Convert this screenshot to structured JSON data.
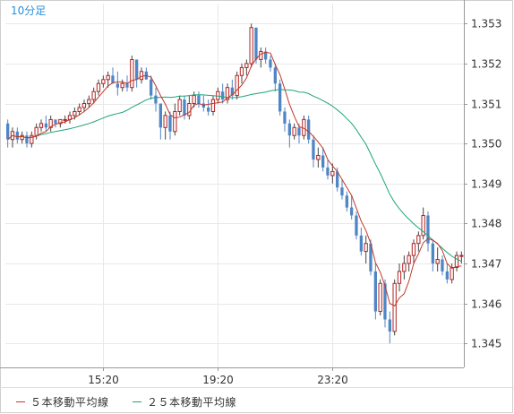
{
  "chart_data": {
    "type": "candlestick",
    "interval_label": "10分足",
    "x_tick_labels": [
      "15:20",
      "19:20",
      "23:20"
    ],
    "y_ticks": [
      1.345,
      1.346,
      1.347,
      1.348,
      1.349,
      1.35,
      1.351,
      1.352,
      1.353
    ],
    "y_tick_labels": [
      "1.345",
      "1.346",
      "1.347",
      "1.348",
      "1.349",
      "1.350",
      "1.351",
      "1.352",
      "1.353"
    ],
    "ylim": [
      1.3444,
      1.3535
    ],
    "grid": true,
    "colors": {
      "up": "#b22222",
      "down": "#4f86c6",
      "ma5": "#c0392b",
      "ma25": "#1fa37a",
      "interval_label": "#2a8fd6",
      "grid": "#e8e8e8",
      "axis": "#999999"
    },
    "legend": [
      {
        "name": "５本移動平均線",
        "color": "#c0392b"
      },
      {
        "name": "２５本移動平均線",
        "color": "#1fa37a"
      }
    ],
    "candles": [
      [
        1.3505,
        1.3506,
        1.3499,
        1.3501
      ],
      [
        1.3501,
        1.3504,
        1.3499,
        1.3503
      ],
      [
        1.3503,
        1.3504,
        1.35,
        1.3501
      ],
      [
        1.3501,
        1.3503,
        1.35,
        1.3502
      ],
      [
        1.3502,
        1.3503,
        1.3499,
        1.35
      ],
      [
        1.35,
        1.3503,
        1.3499,
        1.3502
      ],
      [
        1.3502,
        1.3505,
        1.3501,
        1.3504
      ],
      [
        1.3504,
        1.3506,
        1.3503,
        1.3505
      ],
      [
        1.3505,
        1.3507,
        1.3503,
        1.3504
      ],
      [
        1.3504,
        1.3507,
        1.3503,
        1.3506
      ],
      [
        1.3506,
        1.3506,
        1.3504,
        1.3505
      ],
      [
        1.3505,
        1.3506,
        1.3504,
        1.3506
      ],
      [
        1.3506,
        1.3507,
        1.3505,
        1.3506
      ],
      [
        1.3506,
        1.3508,
        1.3505,
        1.3507
      ],
      [
        1.3507,
        1.3509,
        1.3506,
        1.3508
      ],
      [
        1.3508,
        1.351,
        1.3507,
        1.3509
      ],
      [
        1.3509,
        1.3511,
        1.3508,
        1.351
      ],
      [
        1.351,
        1.3512,
        1.3509,
        1.3511
      ],
      [
        1.3511,
        1.3514,
        1.351,
        1.3513
      ],
      [
        1.3513,
        1.3516,
        1.3512,
        1.3515
      ],
      [
        1.3515,
        1.3517,
        1.3514,
        1.3516
      ],
      [
        1.3516,
        1.3518,
        1.3514,
        1.3517
      ],
      [
        1.3517,
        1.3519,
        1.3515,
        1.3515
      ],
      [
        1.3515,
        1.3518,
        1.3512,
        1.3514
      ],
      [
        1.3514,
        1.3516,
        1.3513,
        1.3515
      ],
      [
        1.3515,
        1.3517,
        1.3513,
        1.3514
      ],
      [
        1.3514,
        1.3522,
        1.3513,
        1.3521
      ],
      [
        1.3521,
        1.3521,
        1.3514,
        1.3516
      ],
      [
        1.3516,
        1.3519,
        1.3515,
        1.3518
      ],
      [
        1.3518,
        1.3519,
        1.3516,
        1.3516
      ],
      [
        1.3516,
        1.3517,
        1.3511,
        1.3512
      ],
      [
        1.3512,
        1.3514,
        1.3508,
        1.351
      ],
      [
        1.351,
        1.351,
        1.3501,
        1.3504
      ],
      [
        1.3504,
        1.3508,
        1.3501,
        1.3507
      ],
      [
        1.3507,
        1.3508,
        1.3501,
        1.3503
      ],
      [
        1.3503,
        1.351,
        1.3502,
        1.3508
      ],
      [
        1.3508,
        1.3512,
        1.3507,
        1.3511
      ],
      [
        1.3511,
        1.3512,
        1.3506,
        1.3507
      ],
      [
        1.3507,
        1.3512,
        1.3506,
        1.351
      ],
      [
        1.351,
        1.3513,
        1.3509,
        1.3512
      ],
      [
        1.3512,
        1.3513,
        1.3509,
        1.351
      ],
      [
        1.351,
        1.3512,
        1.3508,
        1.3509
      ],
      [
        1.3509,
        1.3511,
        1.3507,
        1.3508
      ],
      [
        1.3508,
        1.3512,
        1.3507,
        1.3511
      ],
      [
        1.3511,
        1.3514,
        1.351,
        1.3513
      ],
      [
        1.3513,
        1.3515,
        1.351,
        1.3511
      ],
      [
        1.3511,
        1.3515,
        1.351,
        1.3514
      ],
      [
        1.3514,
        1.3516,
        1.3511,
        1.3512
      ],
      [
        1.3512,
        1.3518,
        1.3511,
        1.3517
      ],
      [
        1.3517,
        1.352,
        1.3515,
        1.3519
      ],
      [
        1.3519,
        1.3521,
        1.3517,
        1.352
      ],
      [
        1.352,
        1.353,
        1.3519,
        1.3529
      ],
      [
        1.3529,
        1.3529,
        1.352,
        1.3521
      ],
      [
        1.3521,
        1.3524,
        1.3519,
        1.3523
      ],
      [
        1.3523,
        1.3524,
        1.352,
        1.3521
      ],
      [
        1.3521,
        1.3522,
        1.3518,
        1.3519
      ],
      [
        1.3519,
        1.352,
        1.3513,
        1.3515
      ],
      [
        1.3515,
        1.3516,
        1.3507,
        1.3508
      ],
      [
        1.3508,
        1.3509,
        1.3503,
        1.3505
      ],
      [
        1.3505,
        1.3506,
        1.3499,
        1.3502
      ],
      [
        1.3502,
        1.3505,
        1.3501,
        1.3504
      ],
      [
        1.3504,
        1.3505,
        1.35,
        1.3502
      ],
      [
        1.3502,
        1.3507,
        1.3501,
        1.3506
      ],
      [
        1.3506,
        1.3507,
        1.35,
        1.3501
      ],
      [
        1.3501,
        1.3502,
        1.3494,
        1.3496
      ],
      [
        1.3496,
        1.3499,
        1.3494,
        1.3497
      ],
      [
        1.3497,
        1.3499,
        1.3493,
        1.3494
      ],
      [
        1.3494,
        1.3496,
        1.3491,
        1.3492
      ],
      [
        1.3492,
        1.3495,
        1.349,
        1.3493
      ],
      [
        1.3493,
        1.3494,
        1.3488,
        1.3489
      ],
      [
        1.3489,
        1.3491,
        1.3486,
        1.3487
      ],
      [
        1.3487,
        1.3488,
        1.3483,
        1.3484
      ],
      [
        1.3484,
        1.3487,
        1.3481,
        1.3482
      ],
      [
        1.3482,
        1.3483,
        1.3476,
        1.3477
      ],
      [
        1.3477,
        1.3479,
        1.3472,
        1.3473
      ],
      [
        1.3473,
        1.3477,
        1.347,
        1.3475
      ],
      [
        1.3475,
        1.3476,
        1.3467,
        1.3468
      ],
      [
        1.3468,
        1.347,
        1.3456,
        1.3458
      ],
      [
        1.3458,
        1.3466,
        1.3457,
        1.3465
      ],
      [
        1.3465,
        1.3466,
        1.3454,
        1.3456
      ],
      [
        1.3456,
        1.3458,
        1.345,
        1.3453
      ],
      [
        1.3453,
        1.3466,
        1.3452,
        1.3465
      ],
      [
        1.3465,
        1.347,
        1.3463,
        1.3468
      ],
      [
        1.3468,
        1.3472,
        1.3466,
        1.347
      ],
      [
        1.347,
        1.3473,
        1.3468,
        1.3472
      ],
      [
        1.3472,
        1.3476,
        1.347,
        1.3475
      ],
      [
        1.3475,
        1.3478,
        1.3473,
        1.3477
      ],
      [
        1.3477,
        1.3484,
        1.3476,
        1.3482
      ],
      [
        1.3482,
        1.3483,
        1.3473,
        1.3475
      ],
      [
        1.3475,
        1.3476,
        1.3468,
        1.347
      ],
      [
        1.347,
        1.3474,
        1.3468,
        1.3471
      ],
      [
        1.3471,
        1.3472,
        1.3467,
        1.3468
      ],
      [
        1.3468,
        1.347,
        1.3465,
        1.3466
      ],
      [
        1.3466,
        1.347,
        1.3465,
        1.3469
      ],
      [
        1.3469,
        1.3473,
        1.3468,
        1.3472
      ],
      [
        1.3472,
        1.3473,
        1.347,
        1.3472
      ]
    ]
  }
}
